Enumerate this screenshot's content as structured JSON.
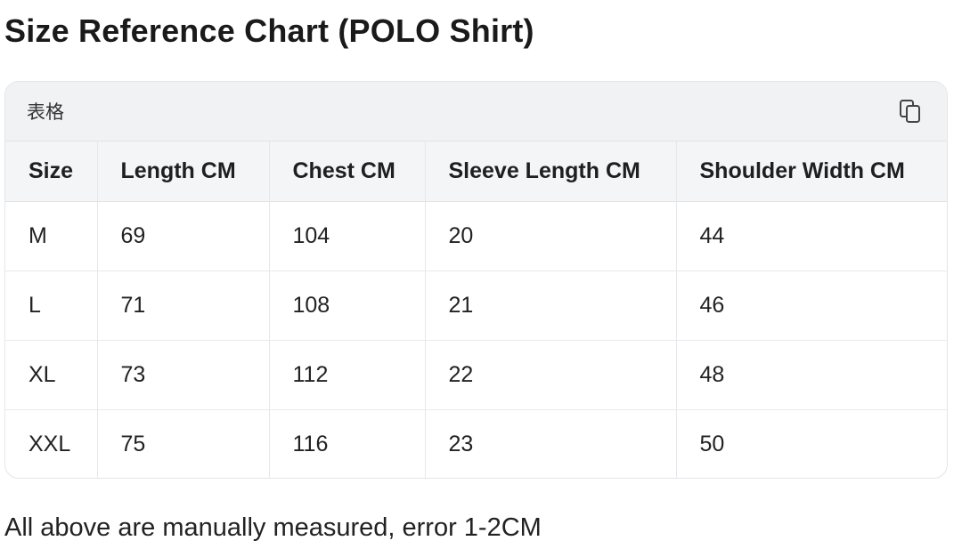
{
  "page": {
    "title": "Size Reference Chart (POLO Shirt)",
    "note": "All above are manually measured, error 1-2CM"
  },
  "table_card": {
    "label": "表格",
    "copy_icon": "copy-icon",
    "columns": [
      "Size",
      "Length CM",
      "Chest CM",
      "Sleeve Length CM",
      "Shoulder Width CM"
    ],
    "rows": [
      [
        "M",
        "69",
        "104",
        "20",
        "44"
      ],
      [
        "L",
        "71",
        "108",
        "21",
        "46"
      ],
      [
        "XL",
        "73",
        "112",
        "22",
        "48"
      ],
      [
        "XXL",
        "75",
        "116",
        "23",
        "50"
      ]
    ]
  },
  "colors": {
    "header_bg": "#f1f2f4",
    "border": "#e4e5e8",
    "text": "#1f1f1f"
  }
}
